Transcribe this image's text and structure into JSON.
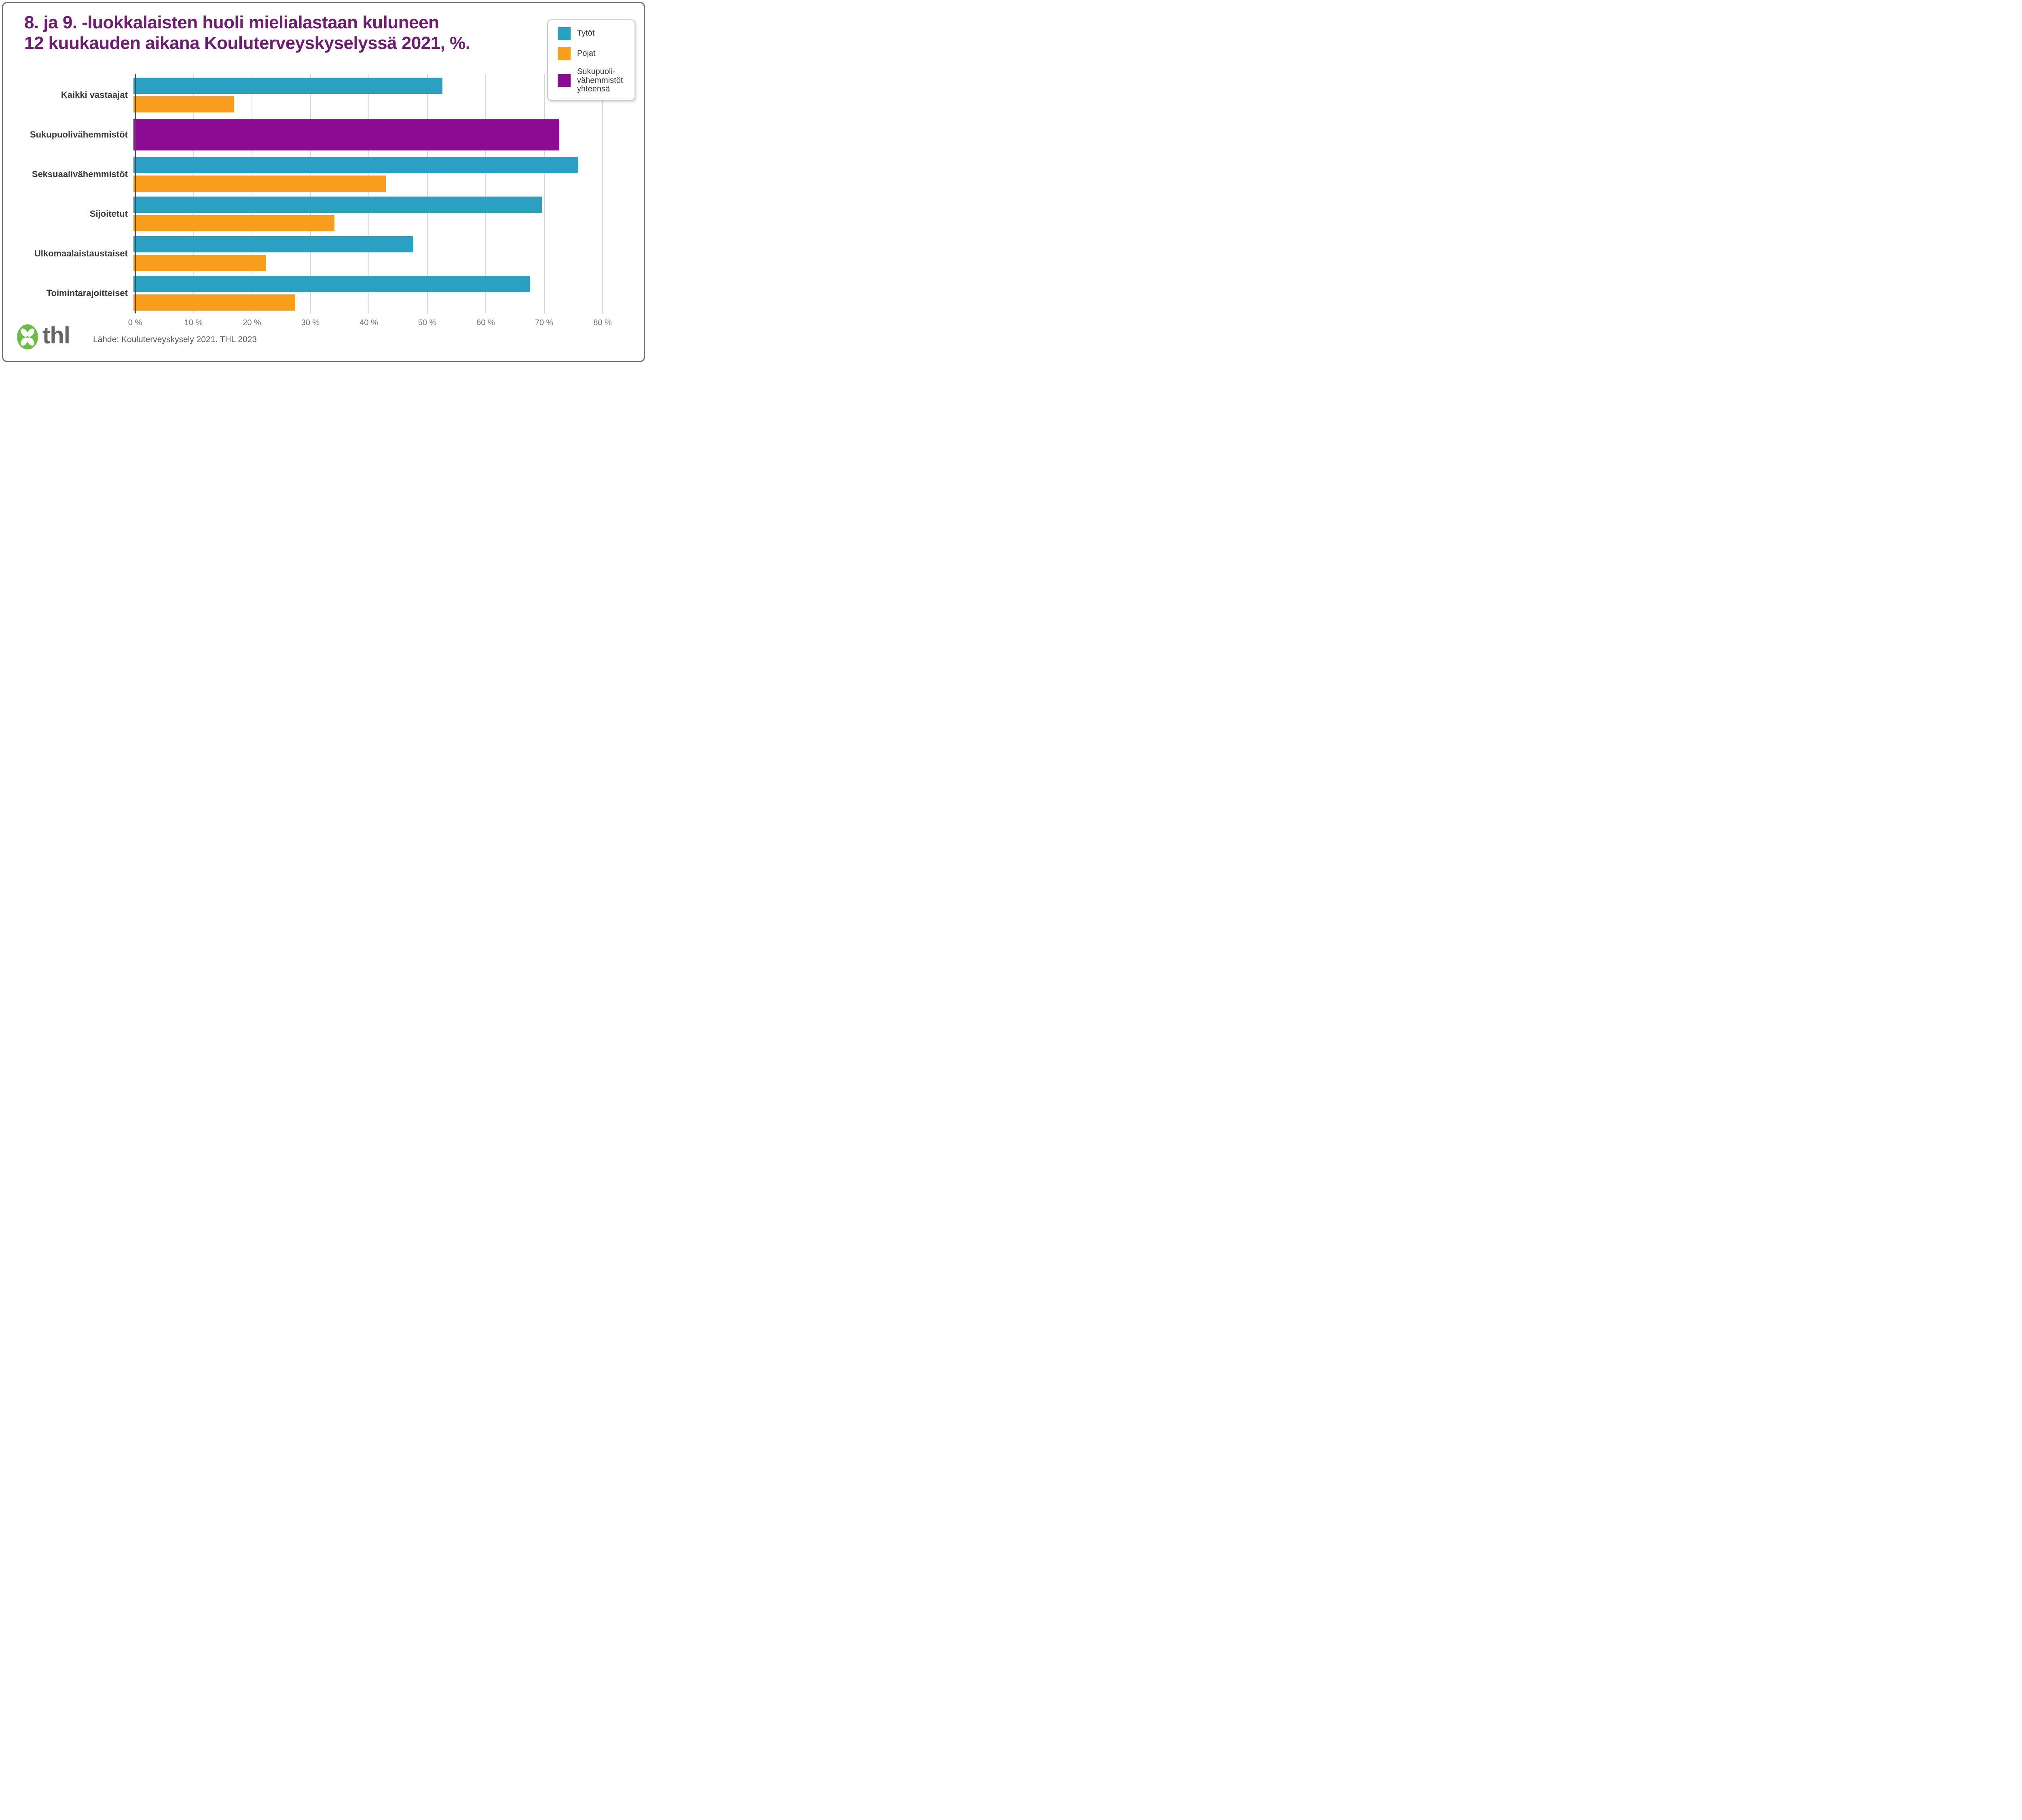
{
  "title": "8. ja 9. -luokkalaisten huoli mielialastaan kuluneen\n12 kuukauden aikana Kouluterveyskyselyssä 2021, %.",
  "legend": {
    "position": "top-right",
    "items": [
      {
        "label": "Tytöt"
      },
      {
        "label": "Pojat"
      },
      {
        "label": "Sukupuoli-\nvähemmistöt\nyhteensä"
      }
    ]
  },
  "chart_data": {
    "type": "bar",
    "orientation": "horizontal",
    "title": "8. ja 9. -luokkalaisten huoli mielialastaan kuluneen 12 kuukauden aikana Kouluterveyskyselyssä 2021, %.",
    "categories": [
      "Kaikki vastaajat",
      "Sukupuolivähemmistöt",
      "Seksuaalivähemmistöt",
      "Sijoitetut",
      "Ulkomaalaistaustaiset",
      "Toimintarajoitteiset"
    ],
    "series": [
      {
        "name": "Tytöt",
        "color": "#2aa1c3",
        "values": [
          52.9,
          null,
          76.1,
          69.9,
          47.9,
          67.9
        ]
      },
      {
        "name": "Pojat",
        "color": "#f89e1c",
        "values": [
          17.2,
          null,
          43.2,
          34.4,
          22.7,
          27.7
        ]
      },
      {
        "name": "Sukupuolivähemmistöt yhteensä",
        "color": "#8c0b92",
        "values": [
          null,
          72.9,
          null,
          null,
          null,
          null
        ]
      }
    ],
    "xlabel": "",
    "ylabel": "",
    "xlim": [
      0,
      80
    ],
    "tick_values": [
      0,
      10,
      20,
      30,
      40,
      50,
      60,
      70,
      80
    ],
    "ticks": [
      "0 %",
      "10 %",
      "20 %",
      "30 %",
      "40 %",
      "50 %",
      "60 %",
      "70 %",
      "80 %"
    ],
    "grid": true,
    "legend_position": "top-right"
  },
  "footer": {
    "logo_text": "thl",
    "source": "Lähde: Kouluterveyskysely 2021. THL 2023"
  },
  "colors": {
    "title_text": "#6e1d72",
    "girls_bar": "#2aa1c3",
    "boys_bar": "#f89e1c",
    "gender_minority_bar": "#8c0b92",
    "logo_green": "#6cbf44",
    "logo_text_gray": "#666666",
    "gridline": "#d9d9d9",
    "axis_line": "#4f4f4f",
    "tick_text": "#757575",
    "category_text": "#3a3a3a",
    "source_text": "#595959",
    "frame_border": "#6e6e6e"
  }
}
